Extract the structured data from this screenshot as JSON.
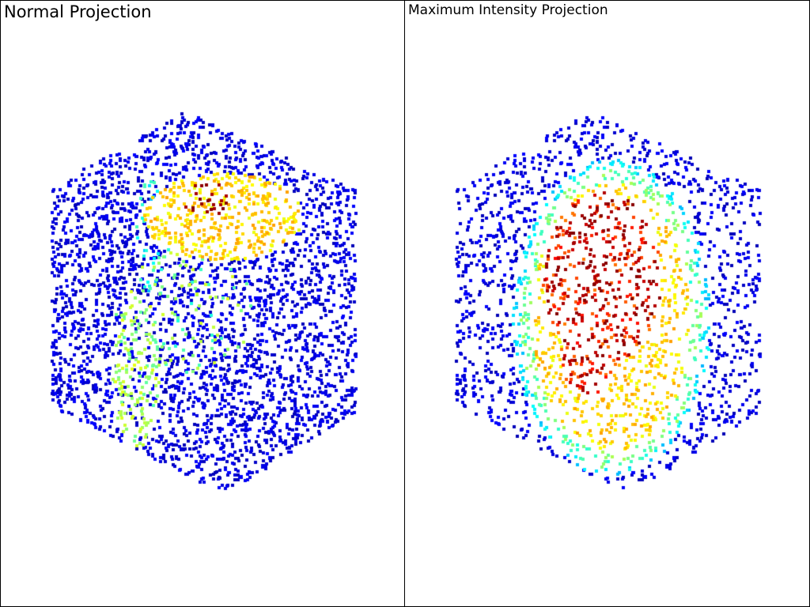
{
  "viewports": [
    {
      "title": "Normal Projection"
    },
    {
      "title": "Maximum Intensity Projection"
    }
  ],
  "colormap": "jet",
  "background_color": "#ffffff"
}
